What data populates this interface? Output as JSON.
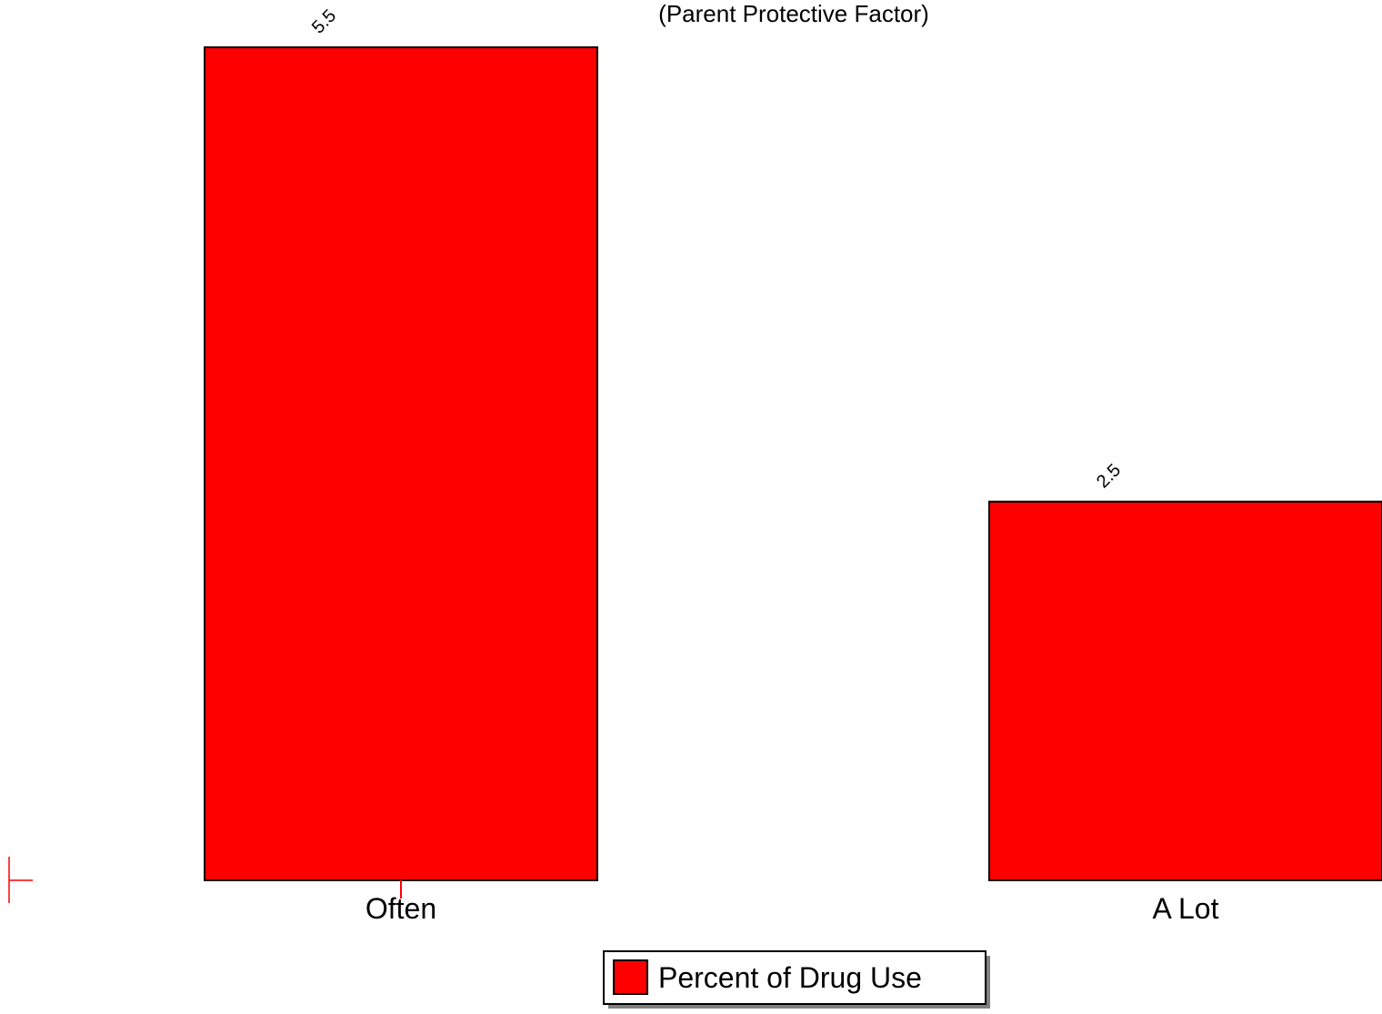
{
  "chart_data": {
    "type": "bar",
    "title": "(Parent Protective Factor)",
    "categories": [
      "Often",
      "A Lot"
    ],
    "series": [
      {
        "name": "Percent of Drug Use",
        "values": [
          5.5,
          2.5
        ],
        "data_labels": [
          "5.5",
          "2.5"
        ]
      }
    ],
    "ylim": [
      0,
      5.5
    ],
    "grid": false,
    "legend_position": "bottom-center",
    "colors": {
      "bar": "#ff0000",
      "bar_stroke": "#000000",
      "axis_accent": "#ff0000"
    }
  }
}
